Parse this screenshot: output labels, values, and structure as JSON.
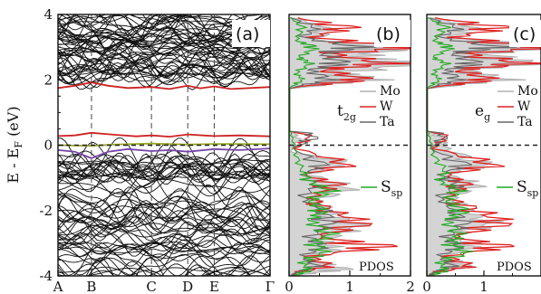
{
  "chart_data": [
    {
      "panel": "(a)",
      "type": "line",
      "ylabel": "E - E",
      "ylabel_sub": "F",
      "ylabel_unit": " (eV)",
      "ylim": [
        -4,
        4
      ],
      "yticks": [
        "4",
        "2",
        "0",
        "-2",
        "-4"
      ],
      "yticks_values": [
        4,
        2,
        0,
        -2,
        -4
      ],
      "kpoints": [
        "A",
        "B",
        "C",
        "D",
        "E",
        "Γ"
      ],
      "kpoint_positions": [
        0,
        1.2,
        3.35,
        4.65,
        5.6,
        7.6
      ],
      "fermi_level": 0,
      "highlighted_bands": [
        {
          "color": "#cc2222",
          "x": [
            0,
            0.6,
            1.2,
            1.8,
            2.5,
            3.35,
            4.0,
            4.65,
            5.1,
            5.6,
            6.2,
            7.6
          ],
          "y": [
            1.75,
            1.82,
            1.92,
            1.82,
            1.75,
            1.78,
            1.72,
            1.82,
            1.74,
            1.8,
            1.72,
            1.78
          ]
        },
        {
          "color": "#cc2222",
          "x": [
            0,
            0.6,
            1.2,
            2.0,
            2.8,
            3.35,
            4.0,
            4.65,
            5.2,
            5.6,
            6.5,
            7.6
          ],
          "y": [
            0.28,
            0.3,
            0.38,
            0.32,
            0.27,
            0.3,
            0.26,
            0.33,
            0.3,
            0.28,
            0.3,
            0.27
          ]
        },
        {
          "color": "#99aa22",
          "x": [
            0,
            1.2,
            2.0,
            3.35,
            4.65,
            5.6,
            7.6
          ],
          "y": [
            0.0,
            -0.02,
            0.02,
            0.05,
            0.02,
            0.04,
            0.03
          ]
        },
        {
          "color": "#7744aa",
          "x": [
            0,
            0.6,
            1.2,
            1.8,
            2.5,
            3.35,
            4.0,
            4.65,
            5.6,
            6.5,
            7.6
          ],
          "y": [
            -0.15,
            -0.2,
            -0.4,
            -0.2,
            -0.12,
            -0.18,
            -0.15,
            -0.2,
            -0.12,
            -0.15,
            -0.1
          ]
        }
      ]
    },
    {
      "panel": "(b)",
      "type": "line",
      "xlim": [
        0,
        2
      ],
      "xticks": [
        "0",
        "1",
        "2"
      ],
      "xticks_values": [
        0,
        1,
        2
      ],
      "ylim": [
        -4,
        4
      ],
      "orbital_label": "t",
      "orbital_sub": "2g",
      "legend": [
        "Mo",
        "W",
        "Ta"
      ],
      "series": [
        {
          "name": "Mo",
          "color": "#b0b0b0",
          "x": [
            0.05,
            0.6,
            0.4,
            1.6,
            1.0,
            1.8,
            0.8,
            1.2,
            0.3,
            0.05,
            0.02,
            0.15,
            0.02,
            0.8,
            0.3,
            0.9,
            0.4,
            0.6,
            1.0,
            0.5,
            0.7,
            0.3,
            0.8,
            0.2,
            0.05
          ],
          "y": [
            3.9,
            3.6,
            3.2,
            3.0,
            2.7,
            2.5,
            2.2,
            2.0,
            1.8,
            1.4,
            0.5,
            0.2,
            -0.2,
            -0.5,
            -0.9,
            -1.3,
            -1.7,
            -2.1,
            -2.5,
            -2.9,
            -3.2,
            -3.5,
            -3.8,
            -3.95,
            -4.0
          ]
        },
        {
          "name": "W",
          "color": "#dd2222",
          "x": [
            0.1,
            0.9,
            0.3,
            1.9,
            0.6,
            1.4,
            0.5,
            1.1,
            0.2,
            0.02,
            0.02,
            0.3,
            0.1,
            0.9,
            0.2,
            0.7,
            0.3,
            0.6,
            1.1,
            0.4,
            1.4,
            0.3,
            0.6,
            0.1,
            0.05
          ],
          "y": [
            3.9,
            3.6,
            3.3,
            3.0,
            2.8,
            2.5,
            2.3,
            2.0,
            1.8,
            1.4,
            0.6,
            0.25,
            -0.1,
            -0.6,
            -0.9,
            -1.2,
            -1.6,
            -2.0,
            -2.4,
            -2.8,
            -3.1,
            -3.4,
            -3.7,
            -3.9,
            -4.0
          ]
        },
        {
          "name": "Ta",
          "color": "#666666",
          "x": [
            0.02,
            0.4,
            0.2,
            1.0,
            0.5,
            0.8,
            0.3,
            0.6,
            0.1,
            0.02,
            0.02,
            0.4,
            0.05,
            0.5,
            0.2,
            0.4,
            0.2,
            0.5,
            0.6,
            0.3,
            0.5,
            0.2,
            0.4,
            0.1,
            0.02
          ],
          "y": [
            3.9,
            3.6,
            3.3,
            3.0,
            2.8,
            2.5,
            2.3,
            2.0,
            1.8,
            1.4,
            0.6,
            0.25,
            -0.1,
            -0.6,
            -0.9,
            -1.2,
            -1.6,
            -2.0,
            -2.4,
            -2.8,
            -3.1,
            -3.4,
            -3.7,
            -3.9,
            -4.0
          ]
        },
        {
          "name": "S",
          "sub": "sp",
          "color": "#22aa22",
          "x": [
            0.02,
            0.2,
            0.1,
            0.4,
            0.15,
            0.3,
            0.1,
            0.2,
            0.05,
            0.01,
            0.01,
            0.05,
            0.1,
            0.2,
            0.3,
            0.6,
            0.3,
            0.5,
            0.3,
            0.6,
            0.4,
            0.5,
            0.2,
            0.3,
            0.05
          ],
          "y": [
            3.9,
            3.6,
            3.2,
            3.0,
            2.7,
            2.5,
            2.2,
            2.0,
            1.8,
            1.4,
            0.5,
            0.2,
            -0.3,
            -0.8,
            -1.1,
            -1.4,
            -1.7,
            -2.0,
            -2.3,
            -2.7,
            -3.0,
            -3.3,
            -3.6,
            -3.85,
            -4.0
          ]
        }
      ],
      "annotation": "PDOS"
    },
    {
      "panel": "(c)",
      "type": "line",
      "xlim": [
        0,
        2
      ],
      "xticks": [
        "0",
        "1"
      ],
      "xticks_values": [
        0,
        1
      ],
      "ylim": [
        -4,
        4
      ],
      "orbital_label": "e",
      "orbital_sub": "g",
      "legend": [
        "Mo",
        "W",
        "Ta"
      ],
      "series": [
        {
          "name": "Mo",
          "color": "#b0b0b0",
          "x": [
            0.1,
            0.8,
            0.4,
            1.9,
            0.9,
            1.6,
            0.6,
            1.2,
            0.3,
            0.05,
            0.02,
            0.2,
            0.3,
            0.9,
            0.3,
            0.8,
            0.4,
            0.6,
            1.0,
            0.4,
            0.8,
            0.3,
            0.6,
            0.2,
            0.05
          ],
          "y": [
            3.9,
            3.6,
            3.3,
            3.0,
            2.8,
            2.5,
            2.3,
            2.0,
            1.8,
            1.4,
            0.6,
            0.25,
            -0.1,
            -0.6,
            -0.9,
            -1.2,
            -1.6,
            -2.0,
            -2.4,
            -2.8,
            -3.1,
            -3.4,
            -3.7,
            -3.9,
            -4.0
          ]
        },
        {
          "name": "W",
          "color": "#dd2222",
          "x": [
            0.1,
            1.2,
            0.4,
            2.0,
            0.6,
            1.5,
            0.5,
            1.0,
            0.2,
            0.02,
            0.02,
            0.3,
            0.1,
            1.1,
            0.3,
            0.6,
            0.3,
            0.8,
            1.2,
            0.4,
            1.2,
            0.3,
            0.7,
            0.1,
            0.05
          ],
          "y": [
            3.9,
            3.6,
            3.3,
            3.0,
            2.8,
            2.5,
            2.3,
            2.0,
            1.8,
            1.4,
            0.6,
            0.25,
            -0.1,
            -0.6,
            -0.9,
            -1.2,
            -1.6,
            -2.0,
            -2.4,
            -2.8,
            -3.1,
            -3.4,
            -3.7,
            -3.9,
            -4.0
          ]
        },
        {
          "name": "Ta",
          "color": "#666666",
          "x": [
            0.02,
            0.5,
            0.2,
            1.1,
            0.4,
            0.8,
            0.3,
            0.5,
            0.1,
            0.02,
            0.02,
            0.3,
            0.05,
            0.6,
            0.2,
            0.5,
            0.2,
            0.4,
            0.6,
            0.3,
            0.5,
            0.2,
            0.4,
            0.1,
            0.02
          ],
          "y": [
            3.9,
            3.6,
            3.3,
            3.0,
            2.8,
            2.5,
            2.3,
            2.0,
            1.8,
            1.4,
            0.6,
            0.25,
            -0.1,
            -0.6,
            -0.9,
            -1.2,
            -1.6,
            -2.0,
            -2.4,
            -2.8,
            -3.1,
            -3.4,
            -3.7,
            -3.9,
            -4.0
          ]
        },
        {
          "name": "S",
          "sub": "sp",
          "color": "#22aa22",
          "x": [
            0.02,
            0.3,
            0.1,
            0.4,
            0.1,
            0.3,
            0.1,
            0.2,
            0.05,
            0.01,
            0.01,
            0.05,
            0.1,
            0.3,
            0.2,
            0.5,
            0.3,
            0.6,
            0.3,
            0.5,
            0.4,
            0.6,
            0.2,
            0.3,
            0.05
          ],
          "y": [
            3.9,
            3.6,
            3.2,
            3.0,
            2.7,
            2.5,
            2.2,
            2.0,
            1.8,
            1.4,
            0.5,
            0.2,
            -0.3,
            -0.8,
            -1.1,
            -1.4,
            -1.7,
            -2.0,
            -2.3,
            -2.7,
            -3.0,
            -3.3,
            -3.6,
            -3.85,
            -4.0
          ]
        }
      ],
      "annotation": "PDOS"
    }
  ]
}
